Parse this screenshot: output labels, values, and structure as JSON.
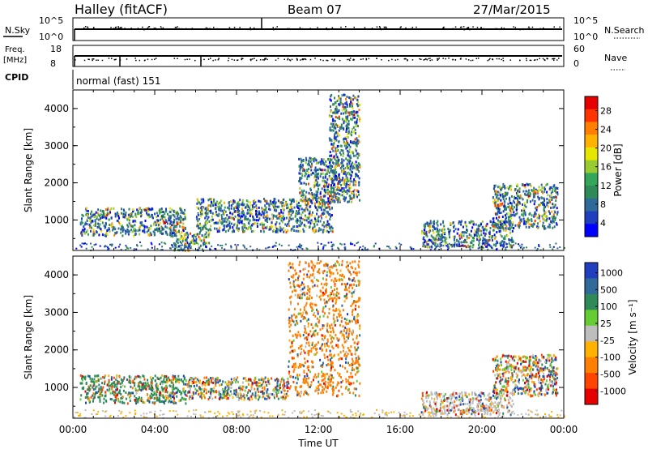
{
  "header": {
    "station": "Halley (fitACF)",
    "beam": "Beam 07",
    "date": "27/Mar/2015"
  },
  "strips": {
    "nsky_label": "N.Sky",
    "nsky_ticks": [
      "10^5",
      "10^0"
    ],
    "nsearch_label": "N.Search",
    "nsearch_ticks": [
      "10^5",
      "10^0"
    ],
    "freq_label_1": "Freq.",
    "freq_label_2": "[MHz]",
    "freq_ticks": [
      "18",
      "8"
    ],
    "nave_label": "Nave",
    "nave_ticks": [
      "60",
      "0"
    ],
    "cpid_label": "CPID",
    "cpid_value": "normal (fast) 151"
  },
  "chart_data": [
    {
      "type": "heatmap",
      "title": "",
      "xlabel": "",
      "ylabel": "Slant Range [km]",
      "xlim": [
        "00:00",
        "24:00"
      ],
      "ylim": [
        180,
        4500
      ],
      "yticks": [
        "1000",
        "2000",
        "3000",
        "4000"
      ],
      "colorbar": {
        "label": "Power [dB]",
        "ticks": [
          "28",
          "24",
          "20",
          "16",
          "12",
          "8",
          "4"
        ],
        "colors": [
          "#e60000",
          "#ff3300",
          "#ff7f00",
          "#ffb300",
          "#e6e600",
          "#99cc33",
          "#33a65a",
          "#2e8b57",
          "#2e6b9a",
          "#1f3fbf",
          "#0000ff"
        ]
      },
      "echo_regions": [
        {
          "t_start": "00:20",
          "t_end": "05:30",
          "range_min": 600,
          "range_max": 1350
        },
        {
          "t_start": "04:50",
          "t_end": "06:40",
          "range_min": 200,
          "range_max": 700
        },
        {
          "t_start": "06:00",
          "t_end": "12:40",
          "range_min": 700,
          "range_max": 1600
        },
        {
          "t_start": "11:00",
          "t_end": "13:00",
          "range_min": 1500,
          "range_max": 2700
        },
        {
          "t_start": "12:30",
          "t_end": "14:00",
          "range_min": 1500,
          "range_max": 4400
        },
        {
          "t_start": "17:00",
          "t_end": "21:30",
          "range_min": 300,
          "range_max": 1000
        },
        {
          "t_start": "20:30",
          "t_end": "23:40",
          "range_min": 800,
          "range_max": 2000
        }
      ]
    },
    {
      "type": "heatmap",
      "title": "",
      "xlabel": "Time UT",
      "ylabel": "Slant Range [km]",
      "xlim": [
        "00:00",
        "24:00"
      ],
      "ylim": [
        180,
        4500
      ],
      "xticks": [
        "00:00",
        "04:00",
        "08:00",
        "12:00",
        "16:00",
        "20:00",
        "00:00"
      ],
      "yticks": [
        "1000",
        "2000",
        "3000",
        "4000"
      ],
      "colorbar": {
        "label": "Velocity [m s⁻¹]",
        "ticks": [
          "1000",
          "500",
          "100",
          "25",
          "-25",
          "-100",
          "-500",
          "-1000"
        ],
        "colors": [
          "#1f3fbf",
          "#2e6b9a",
          "#2e8b57",
          "#66cc33",
          "#bdbdbd",
          "#ffb300",
          "#ff7f00",
          "#ff4500",
          "#e60000"
        ]
      },
      "echo_regions": [
        {
          "t_start": "00:20",
          "t_end": "05:30",
          "range_min": 600,
          "range_max": 1350
        },
        {
          "t_start": "05:30",
          "t_end": "10:30",
          "range_min": 700,
          "range_max": 1300
        },
        {
          "t_start": "10:30",
          "t_end": "14:00",
          "range_min": 800,
          "range_max": 4400
        },
        {
          "t_start": "17:00",
          "t_end": "21:30",
          "range_min": 300,
          "range_max": 900
        },
        {
          "t_start": "20:30",
          "t_end": "23:40",
          "range_min": 800,
          "range_max": 1900
        }
      ]
    }
  ]
}
